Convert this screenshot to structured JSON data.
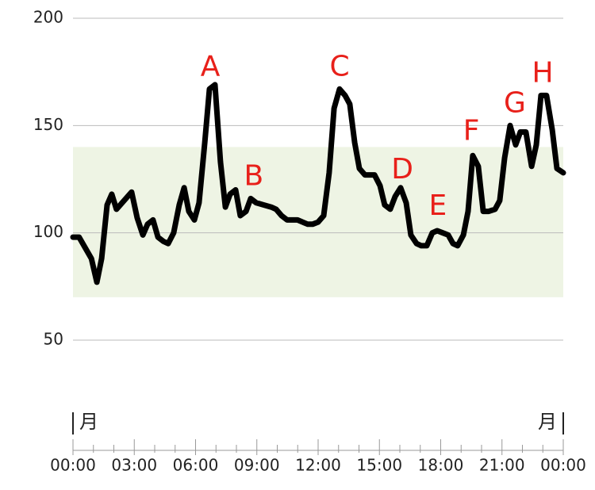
{
  "chart_data": {
    "type": "line",
    "xlim": [
      0,
      24
    ],
    "ylim": [
      50,
      200
    ],
    "yticks": [
      50,
      100,
      150,
      200
    ],
    "xticks": [
      {
        "value": 0,
        "label": "00:00"
      },
      {
        "value": 3,
        "label": "03:00"
      },
      {
        "value": 6,
        "label": "06:00"
      },
      {
        "value": 9,
        "label": "09:00"
      },
      {
        "value": 12,
        "label": "12:00"
      },
      {
        "value": 15,
        "label": "15:00"
      },
      {
        "value": 18,
        "label": "18:00"
      },
      {
        "value": 21,
        "label": "21:00"
      },
      {
        "value": 24,
        "label": "00:00"
      }
    ],
    "grid": true,
    "target_range": [
      70,
      140
    ],
    "target_color": "#eef4e4",
    "day_markers": [
      {
        "value": 0,
        "label": "月"
      },
      {
        "value": 24,
        "label": "月"
      }
    ],
    "series": [
      {
        "color": "#000000",
        "x": [
          0,
          0.3,
          0.9,
          1.17,
          1.4,
          1.67,
          1.9,
          2.13,
          2.87,
          3.14,
          3.42,
          3.65,
          3.92,
          4.16,
          4.43,
          4.66,
          4.93,
          5.2,
          5.44,
          5.67,
          5.94,
          6.17,
          6.45,
          6.68,
          6.95,
          7.22,
          7.46,
          7.69,
          7.96,
          8.19,
          8.47,
          8.7,
          8.97,
          9.71,
          9.94,
          10.21,
          10.48,
          10.99,
          11.49,
          11.73,
          12.0,
          12.27,
          12.54,
          12.78,
          13.05,
          13.32,
          13.55,
          13.79,
          14.02,
          14.29,
          14.76,
          15.03,
          15.26,
          15.53,
          15.77,
          16.04,
          16.31,
          16.54,
          16.82,
          17.05,
          17.32,
          17.59,
          17.83,
          18.1,
          18.37,
          18.6,
          18.83,
          19.11,
          19.34,
          19.57,
          19.84,
          20.08,
          20.35,
          20.66,
          20.89,
          21.13,
          21.4,
          21.67,
          21.9,
          22.17,
          22.45,
          22.68,
          22.91,
          23.18,
          23.46,
          23.69,
          24
        ],
        "values": [
          98,
          98,
          88,
          77,
          88,
          113,
          118,
          111,
          119,
          107,
          99,
          104,
          106,
          98,
          96,
          95,
          100,
          113,
          121,
          110,
          106,
          114,
          142,
          167,
          169,
          133,
          112,
          118,
          120,
          108,
          110,
          116,
          114,
          112,
          111,
          108,
          106,
          106,
          104,
          104,
          105,
          108,
          128,
          158,
          167,
          164,
          160,
          142,
          130,
          127,
          127,
          122,
          113,
          111,
          117,
          121,
          114,
          99,
          95,
          94,
          94,
          100,
          101,
          100,
          99,
          95,
          94,
          99,
          110,
          136,
          131,
          110,
          110,
          111,
          115,
          135,
          150,
          141,
          147,
          147,
          131,
          141,
          164,
          164,
          148,
          130,
          128
        ]
      }
    ],
    "annotations": [
      {
        "text": "A",
        "x": 6.72,
        "y": 177
      },
      {
        "text": "B",
        "x": 8.85,
        "y": 126
      },
      {
        "text": "C",
        "x": 13.05,
        "y": 177
      },
      {
        "text": "D",
        "x": 16.12,
        "y": 129
      },
      {
        "text": "E",
        "x": 17.86,
        "y": 112
      },
      {
        "text": "F",
        "x": 19.5,
        "y": 147
      },
      {
        "text": "G",
        "x": 21.63,
        "y": 160
      },
      {
        "text": "H",
        "x": 22.99,
        "y": 174
      }
    ]
  }
}
